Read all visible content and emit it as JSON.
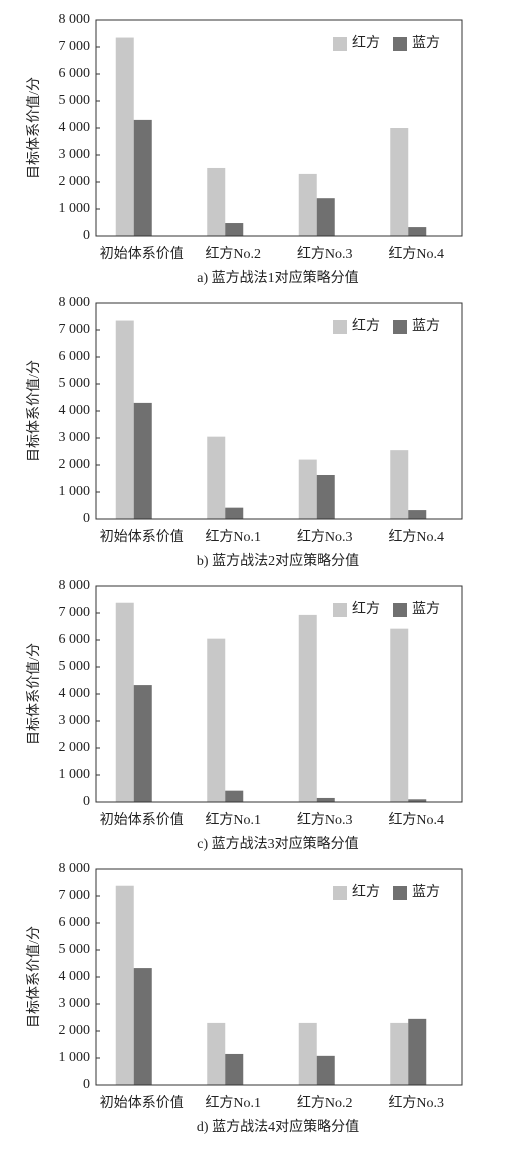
{
  "chart_data": [
    {
      "type": "bar",
      "title": "a) 蓝方战法1对应策略分值",
      "y_label": "目标体系价值/分",
      "categories": [
        "初始体系价值",
        "红方No.2",
        "红方No.3",
        "红方No.4"
      ],
      "series": [
        {
          "name": "红方",
          "color": "#c8c8c8",
          "values": [
            7350,
            2520,
            2300,
            4000
          ]
        },
        {
          "name": "蓝方",
          "color": "#707070",
          "values": [
            4300,
            480,
            1400,
            330
          ]
        }
      ],
      "ylim": [
        0,
        8000
      ],
      "yticks": [
        0,
        {
          "value": 1000,
          "label": "1 000"
        },
        {
          "value": 2000,
          "label": "2 000"
        },
        {
          "value": 3000,
          "label": "3 000"
        },
        {
          "value": 4000,
          "label": "4 000"
        },
        {
          "value": 5000,
          "label": "5 000"
        },
        {
          "value": 6000,
          "label": "6 000"
        },
        {
          "value": 7000,
          "label": "7 000"
        },
        {
          "value": 8000,
          "label": "8 000"
        }
      ],
      "legend": "upper right"
    },
    {
      "type": "bar",
      "title": "b) 蓝方战法2对应策略分值",
      "y_label": "目标体系价值/分",
      "categories": [
        "初始体系价值",
        "红方No.1",
        "红方No.3",
        "红方No.4"
      ],
      "series": [
        {
          "name": "红方",
          "color": "#c8c8c8",
          "values": [
            7350,
            3050,
            2200,
            2550
          ]
        },
        {
          "name": "蓝方",
          "color": "#707070",
          "values": [
            4300,
            420,
            1630,
            330
          ]
        }
      ],
      "ylim": [
        0,
        8000
      ],
      "yticks": [
        0,
        {
          "value": 1000,
          "label": "1 000"
        },
        {
          "value": 2000,
          "label": "2 000"
        },
        {
          "value": 3000,
          "label": "3 000"
        },
        {
          "value": 4000,
          "label": "4 000"
        },
        {
          "value": 5000,
          "label": "5 000"
        },
        {
          "value": 6000,
          "label": "6 000"
        },
        {
          "value": 7000,
          "label": "7 000"
        },
        {
          "value": 8000,
          "label": "8 000"
        }
      ],
      "legend": "upper right"
    },
    {
      "type": "bar",
      "title": "c) 蓝方战法3对应策略分值",
      "y_label": "目标体系价值/分",
      "categories": [
        "初始体系价值",
        "红方No.1",
        "红方No.3",
        "红方No.4"
      ],
      "series": [
        {
          "name": "红方",
          "color": "#c8c8c8",
          "values": [
            7380,
            6050,
            6930,
            6420
          ]
        },
        {
          "name": "蓝方",
          "color": "#707070",
          "values": [
            4330,
            420,
            150,
            100
          ]
        }
      ],
      "ylim": [
        0,
        8000
      ],
      "yticks": [
        0,
        {
          "value": 1000,
          "label": "1 000"
        },
        {
          "value": 2000,
          "label": "2 000"
        },
        {
          "value": 3000,
          "label": "3 000"
        },
        {
          "value": 4000,
          "label": "4 000"
        },
        {
          "value": 5000,
          "label": "5 000"
        },
        {
          "value": 6000,
          "label": "6 000"
        },
        {
          "value": 7000,
          "label": "7 000"
        },
        {
          "value": 8000,
          "label": "8 000"
        }
      ],
      "legend": "upper right"
    },
    {
      "type": "bar",
      "title": "d) 蓝方战法4对应策略分值",
      "y_label": "目标体系价值/分",
      "categories": [
        "初始体系价值",
        "红方No.1",
        "红方No.2",
        "红方No.3"
      ],
      "series": [
        {
          "name": "红方",
          "color": "#c8c8c8",
          "values": [
            7380,
            2300,
            2300,
            2300
          ]
        },
        {
          "name": "蓝方",
          "color": "#707070",
          "values": [
            4330,
            1150,
            1080,
            2450
          ]
        }
      ],
      "ylim": [
        0,
        8000
      ],
      "yticks": [
        0,
        {
          "value": 1000,
          "label": "1 000"
        },
        {
          "value": 2000,
          "label": "2 000"
        },
        {
          "value": 3000,
          "label": "3 000"
        },
        {
          "value": 4000,
          "label": "4 000"
        },
        {
          "value": 5000,
          "label": "5 000"
        },
        {
          "value": 6000,
          "label": "6 000"
        },
        {
          "value": 7000,
          "label": "7 000"
        },
        {
          "value": 8000,
          "label": "8 000"
        }
      ],
      "legend": "upper right"
    }
  ]
}
